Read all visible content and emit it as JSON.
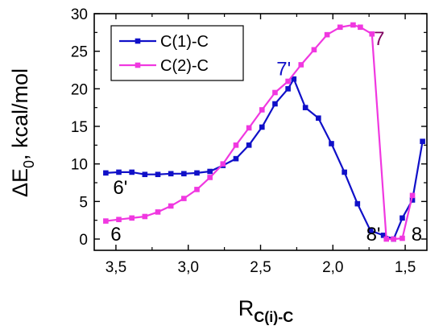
{
  "chart_data": {
    "type": "line",
    "xlabel_main": "R",
    "xlabel_sub": "C(i)-C",
    "ylabel_main": "ΔE",
    "ylabel_sub": "0",
    "ylabel_rest": ", kcal/mol",
    "x_reversed": true,
    "xlim": [
      3.65,
      1.35
    ],
    "ylim": [
      -1.5,
      30
    ],
    "x_ticks": [
      3.5,
      3.0,
      2.5,
      2.0,
      1.5
    ],
    "x_tick_labels": [
      "3,5",
      "3,0",
      "2,5",
      "2,0",
      "1,5"
    ],
    "y_ticks": [
      0,
      5,
      10,
      15,
      20,
      25,
      30
    ],
    "y_tick_labels": [
      "0",
      "5",
      "10",
      "15",
      "20",
      "25",
      "30"
    ],
    "legend_position": "top-left",
    "series": [
      {
        "name": "C(1)-C",
        "color": "#1010c8",
        "x": [
          3.57,
          3.48,
          3.39,
          3.3,
          3.21,
          3.12,
          3.03,
          2.94,
          2.85,
          2.76,
          2.67,
          2.58,
          2.49,
          2.4,
          2.31,
          2.27,
          2.19,
          2.1,
          2.01,
          1.92,
          1.83,
          1.74,
          1.65,
          1.58,
          1.52,
          1.45,
          1.38
        ],
        "y": [
          8.8,
          8.9,
          8.9,
          8.6,
          8.6,
          8.7,
          8.7,
          8.8,
          9.0,
          9.8,
          10.7,
          12.5,
          14.9,
          18.0,
          20.0,
          21.3,
          17.5,
          16.1,
          12.7,
          8.9,
          4.7,
          1.1,
          0.5,
          0.0,
          2.8,
          5.2,
          13.0
        ]
      },
      {
        "name": "C(2)-C",
        "color": "#f038e0",
        "x": [
          3.57,
          3.48,
          3.39,
          3.3,
          3.21,
          3.12,
          3.03,
          2.94,
          2.85,
          2.76,
          2.67,
          2.58,
          2.49,
          2.4,
          2.31,
          2.22,
          2.13,
          2.04,
          1.95,
          1.86,
          1.81,
          1.73,
          1.63,
          1.58,
          1.52,
          1.45
        ],
        "y": [
          2.4,
          2.6,
          2.8,
          3.0,
          3.6,
          4.4,
          5.4,
          6.6,
          8.2,
          10.0,
          12.5,
          14.8,
          17.2,
          19.5,
          21.0,
          23.2,
          25.2,
          27.2,
          28.2,
          28.5,
          28.2,
          27.3,
          0.0,
          0.0,
          0.1,
          5.8
        ]
      }
    ],
    "annotations": [
      {
        "text": "6'",
        "x": 3.47,
        "y": 6.0,
        "color": "#000000"
      },
      {
        "text": "6",
        "x": 3.5,
        "y": -0.2,
        "color": "#000000"
      },
      {
        "text": "7'",
        "x": 2.34,
        "y": 21.8,
        "color": "#1010c8"
      },
      {
        "text": "7",
        "x": 1.68,
        "y": 25.8,
        "color": "#800060"
      },
      {
        "text": "8'",
        "x": 1.72,
        "y": -0.2,
        "color": "#000000"
      },
      {
        "text": "8",
        "x": 1.42,
        "y": -0.2,
        "color": "#000000"
      }
    ]
  }
}
